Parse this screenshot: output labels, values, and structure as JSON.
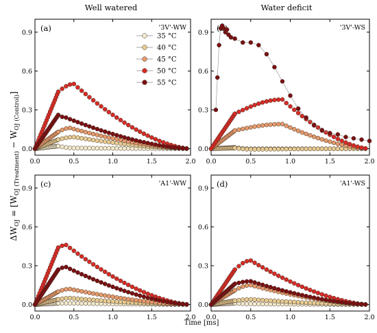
{
  "figure": {
    "column_titles": [
      "Well watered",
      "Water deficit"
    ],
    "x_axis_title": "Time [ms]",
    "y_axis_title": {
      "prefix": "ΔW",
      "sub1": "OJ",
      "eq": " = [W",
      "sub2": "OJ (Treatment)",
      "minus": " − W",
      "sub3": "OJ (Control)",
      "close": "]"
    }
  },
  "colors": {
    "35 °C": "#f3ebcf",
    "40 °C": "#e7cc93",
    "45 °C": "#e59a6b",
    "50 °C": "#d92b26",
    "55 °C": "#7a1012"
  },
  "chart_data": [
    {
      "panel": "(a)",
      "treatment": "'3V'-WW",
      "type": "scatter",
      "xlim": [
        0,
        2.0
      ],
      "ylim": [
        -0.05,
        1.0
      ],
      "xticks": [
        "0.0",
        "0.5",
        "1.0",
        "1.5",
        "2.0"
      ],
      "yticks": [
        "0.0",
        "0.3",
        "0.6",
        "0.9"
      ],
      "legend": [
        "35 °C",
        "40 °C",
        "45 °C",
        "50 °C",
        "55 °C"
      ],
      "series": [
        {
          "name": "35 °C",
          "peak_x": 0.5,
          "peak_y": 0.005,
          "init": 0.02
        },
        {
          "name": "40 °C",
          "peak_x": 0.5,
          "peak_y": 0.09,
          "init": 0.07
        },
        {
          "name": "45 °C",
          "peak_x": 0.45,
          "peak_y": 0.16,
          "init": 0.13
        },
        {
          "name": "50 °C",
          "peak_x": 0.5,
          "peak_y": 0.5,
          "init": 0.44
        },
        {
          "name": "55 °C",
          "peak_x": 0.4,
          "peak_y": 0.24,
          "init": 0.26
        }
      ]
    },
    {
      "panel": "(b)",
      "treatment": "'3V'-WS",
      "type": "scatter",
      "xlim": [
        0,
        2.0
      ],
      "ylim": [
        -0.05,
        1.0
      ],
      "xticks": [
        "0.0",
        "0.5",
        "1.0",
        "1.5",
        "2.0"
      ],
      "yticks": [
        "0.0",
        "0.3",
        "0.6",
        "0.9"
      ],
      "legend": [],
      "series": [
        {
          "name": "35 °C",
          "peak_x": 0.5,
          "peak_y": 0.0,
          "init": 0.01
        },
        {
          "name": "40 °C",
          "peak_x": 0.5,
          "peak_y": -0.005,
          "init": 0.005
        },
        {
          "name": "45 °C",
          "peak_x": 0.9,
          "peak_y": 0.19,
          "init": 0.14
        },
        {
          "name": "50 °C",
          "peak_x": 0.9,
          "peak_y": 0.38,
          "init": 0.27
        },
        {
          "name": "55 °C",
          "peak_x": 0.1,
          "peak_y": 0.95,
          "init": 0.0
        }
      ]
    },
    {
      "panel": "(c)",
      "treatment": "'A1'-WW",
      "type": "scatter",
      "xlim": [
        0,
        2.0
      ],
      "ylim": [
        -0.05,
        1.0
      ],
      "xticks": [
        "0.0",
        "0.5",
        "1.0",
        "1.5",
        "2.0"
      ],
      "yticks": [
        "0.0",
        "0.3",
        "0.6",
        "0.9"
      ],
      "legend": [],
      "series": [
        {
          "name": "35 °C",
          "peak_x": 0.5,
          "peak_y": 0.01,
          "init": 0.01
        },
        {
          "name": "40 °C",
          "peak_x": 0.45,
          "peak_y": 0.05,
          "init": 0.04
        },
        {
          "name": "45 °C",
          "peak_x": 0.45,
          "peak_y": 0.12,
          "init": 0.1
        },
        {
          "name": "50 °C",
          "peak_x": 0.4,
          "peak_y": 0.46,
          "init": 0.44
        },
        {
          "name": "55 °C",
          "peak_x": 0.4,
          "peak_y": 0.29,
          "init": 0.27
        }
      ]
    },
    {
      "panel": "(d)",
      "treatment": "'A1'-WS",
      "type": "scatter",
      "xlim": [
        0,
        2.0
      ],
      "ylim": [
        -0.05,
        1.0
      ],
      "xticks": [
        "0.0",
        "0.5",
        "1.0",
        "1.5",
        "2.0"
      ],
      "yticks": [
        "0.0",
        "0.3",
        "0.6",
        "0.9"
      ],
      "legend": [],
      "series": [
        {
          "name": "35 °C",
          "peak_x": 0.5,
          "peak_y": 0.005,
          "init": 0.01
        },
        {
          "name": "40 °C",
          "peak_x": 0.5,
          "peak_y": 0.04,
          "init": 0.03
        },
        {
          "name": "45 °C",
          "peak_x": 0.5,
          "peak_y": 0.15,
          "init": 0.11
        },
        {
          "name": "50 °C",
          "peak_x": 0.5,
          "peak_y": 0.34,
          "init": 0.27
        },
        {
          "name": "55 °C",
          "peak_x": 0.5,
          "peak_y": 0.18,
          "init": 0.16
        }
      ]
    }
  ]
}
